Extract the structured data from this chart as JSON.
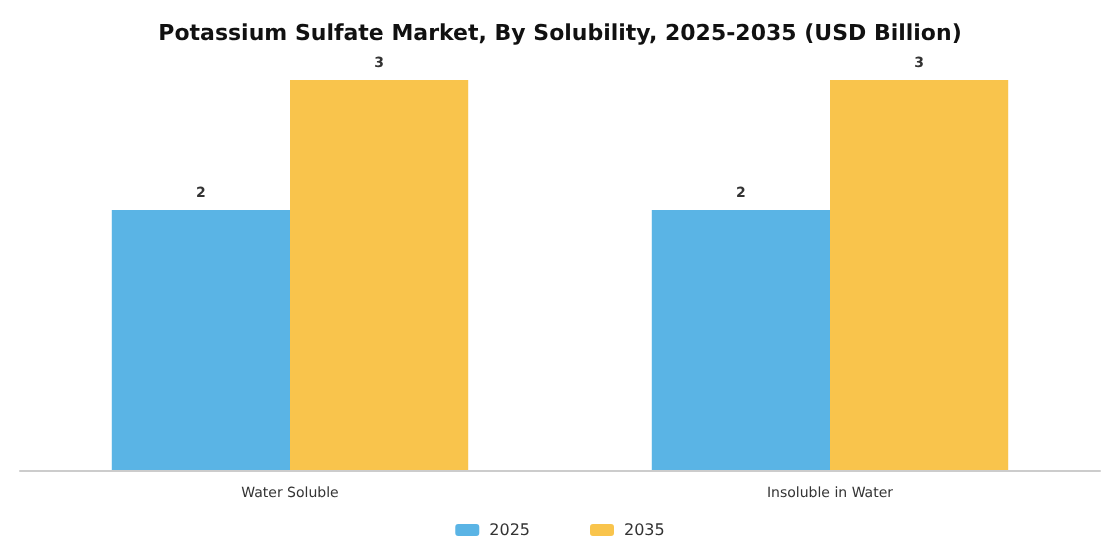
{
  "chart_data": {
    "type": "bar",
    "title": "Potassium Sulfate Market, By Solubility, 2025-2035 (USD Billion)",
    "categories": [
      "Water Soluble",
      "Insoluble in Water"
    ],
    "series": [
      {
        "name": "2025",
        "color": "#5ab4e5",
        "values": [
          2,
          2
        ]
      },
      {
        "name": "2035",
        "color": "#f9c44c",
        "values": [
          3,
          3
        ]
      }
    ],
    "data_labels": true,
    "legend": "bottom"
  }
}
